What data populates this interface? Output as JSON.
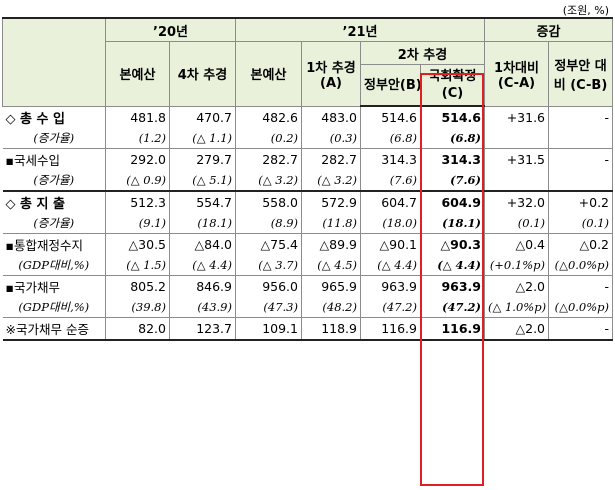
{
  "unit": "(조원, %)",
  "header": {
    "y20": "’20년",
    "y21": "’21년",
    "change": "증감",
    "second_supp": "2차 추경",
    "cols": [
      "본예산",
      "4차 추경",
      "본예산",
      "1차 추경(A)",
      "정부안(B)",
      "국회확정 (C)",
      "1차대비 (C-A)",
      "정부안 대비 (C-B)"
    ]
  },
  "rows": [
    {
      "label": "◇ 총 수 입",
      "values": [
        "481.8",
        "470.7",
        "482.6",
        "483.0",
        "514.6",
        "514.6",
        "+31.6",
        "-"
      ]
    },
    {
      "label": "(증가율)",
      "values": [
        "(1.2)",
        "(△ 1.1)",
        "(0.2)",
        "(0.3)",
        "(6.8)",
        "(6.8)",
        "",
        ""
      ]
    },
    {
      "label": "▪국세수입",
      "values": [
        "292.0",
        "279.7",
        "282.7",
        "282.7",
        "314.3",
        "314.3",
        "+31.5",
        "-"
      ]
    },
    {
      "label": "(증가율)",
      "values": [
        "(△ 0.9)",
        "(△ 5.1)",
        "(△ 3.2)",
        "(△ 3.2)",
        "(7.6)",
        "(7.6)",
        "",
        ""
      ]
    },
    {
      "label": "◇ 총 지 출",
      "values": [
        "512.3",
        "554.7",
        "558.0",
        "572.9",
        "604.7",
        "604.9",
        "+32.0",
        "+0.2"
      ]
    },
    {
      "label": "(증가율)",
      "values": [
        "(9.1)",
        "(18.1)",
        "(8.9)",
        "(11.8)",
        "(18.0)",
        "(18.1)",
        "(0.1)",
        "(0.1)"
      ]
    },
    {
      "label": "▪통합재정수지",
      "values": [
        "△30.5",
        "△84.0",
        "△75.4",
        "△89.9",
        "△90.1",
        "△90.3",
        "△0.4",
        "△0.2"
      ]
    },
    {
      "label": "(GDP대비,%)",
      "values": [
        "(△ 1.5)",
        "(△ 4.4)",
        "(△ 3.7)",
        "(△ 4.5)",
        "(△ 4.4)",
        "(△ 4.4)",
        "(+0.1%p)",
        "(△0.0%p)"
      ]
    },
    {
      "label": "▪국가채무",
      "values": [
        "805.2",
        "846.9",
        "956.0",
        "965.9",
        "963.9",
        "963.9",
        "△2.0",
        "-"
      ]
    },
    {
      "label": "(GDP대비,%)",
      "values": [
        "(39.8)",
        "(43.9)",
        "(47.3)",
        "(48.2)",
        "(47.2)",
        "(47.2)",
        "(△ 1.0%p)",
        "(△0.0%p)"
      ]
    },
    {
      "label": "※국가채무 순증",
      "values": [
        "82.0",
        "123.7",
        "109.1",
        "118.9",
        "116.9",
        "116.9",
        "△2.0",
        "-"
      ]
    }
  ]
}
